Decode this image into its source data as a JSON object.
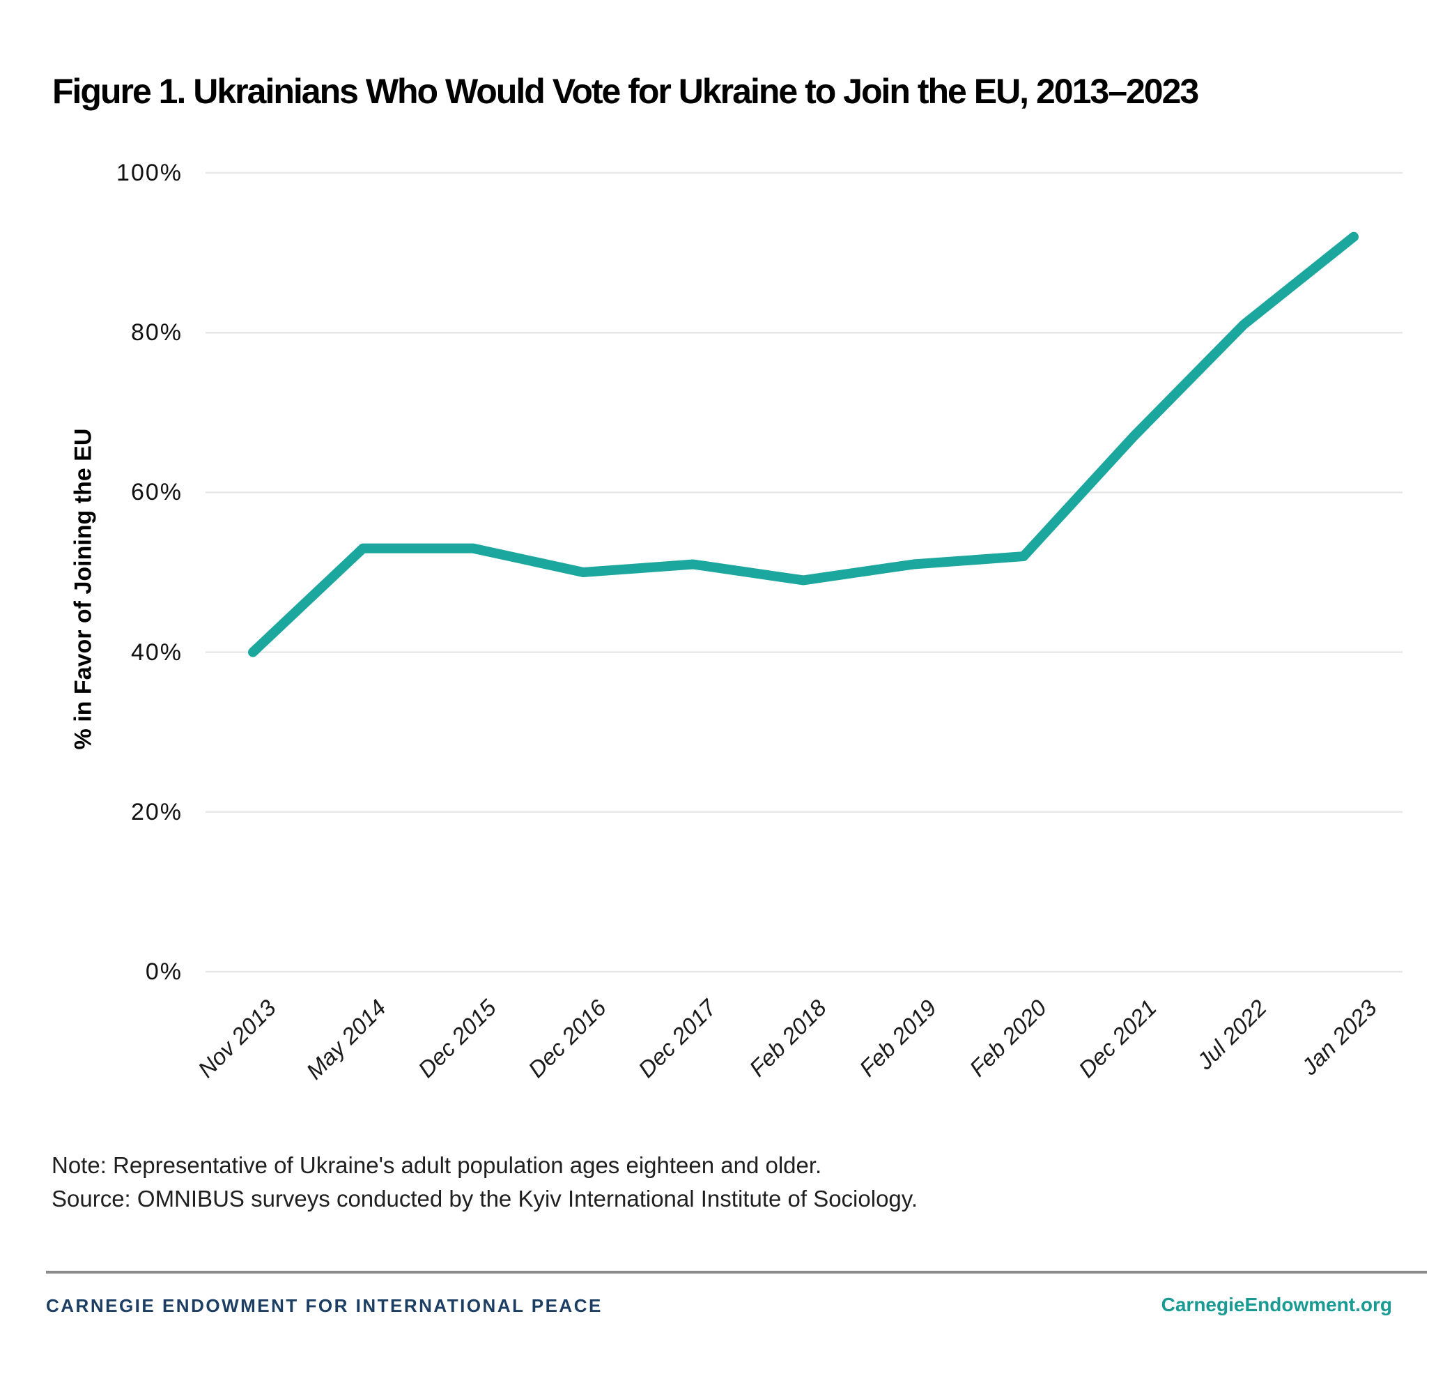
{
  "title": "Figure 1. Ukrainians Who Would Vote for Ukraine to Join the EU, 2013–2023",
  "chart_data": {
    "type": "line",
    "categories": [
      "Nov 2013",
      "May 2014",
      "Dec 2015",
      "Dec 2016",
      "Dec 2017",
      "Feb 2018",
      "Feb 2019",
      "Feb 2020",
      "Dec 2021",
      "Jul 2022",
      "Jan 2023"
    ],
    "series": [
      {
        "name": "% in favor of joining the EU",
        "values": [
          40,
          53,
          53,
          50,
          51,
          49,
          51,
          52,
          67,
          81,
          92
        ]
      }
    ],
    "title": "Figure 1. Ukrainians Who Would Vote for Ukraine to Join the EU, 2013–2023",
    "xlabel": "",
    "ylabel": "% in Favor of Joining the EU",
    "ylim": [
      0,
      100
    ],
    "yticks": [
      0,
      20,
      40,
      60,
      80,
      100
    ],
    "ytick_labels": [
      "0%",
      "20%",
      "40%",
      "60%",
      "80%",
      "100%"
    ],
    "grid": "horizontal",
    "legend": "none",
    "line_color": "#1BA79D",
    "gridline_color": "#E8E8E8"
  },
  "note_line": "Note: Representative of Ukraine's adult population ages eighteen and older.",
  "source_line": "Source: OMNIBUS surveys conducted by the Kyiv International Institute of Sociology.",
  "footer": {
    "org_name": "CARNEGIE ENDOWMENT FOR INTERNATIONAL PEACE",
    "org_color": "#1C3E63",
    "website": "CarnegieEndowment.org",
    "website_color": "#199A92",
    "rule_color": "#8A8A8A"
  }
}
